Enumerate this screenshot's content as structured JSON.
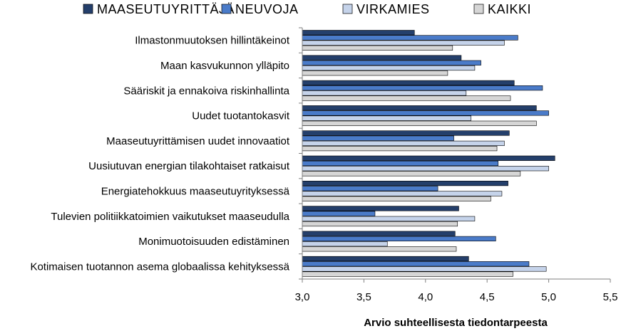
{
  "chart_data": {
    "type": "bar",
    "orientation": "horizontal",
    "categories": [
      "Ilmastonmuutoksen hillintäkeinot",
      "Maan kasvukunnon ylläpito",
      "Sääriskit ja ennakoiva riskinhallinta",
      "Uudet tuotantokasvit",
      "Maaseutuyrittämisen uudet innovaatiot",
      "Uusiutuvan energian tilakohtaiset ratkaisut",
      "Energiatehokkuus maaseutuyrityksessä",
      "Tulevien politiikkatoimien vaikutukset maaseudulla",
      "Monimuotoisuuden edistäminen",
      "Kotimaisen tuotannon asema globaalissa kehityksessä"
    ],
    "series": [
      {
        "name": "MAASEUTUYRITTÄJÄ",
        "color": "#243F6B",
        "values": [
          3.91,
          4.29,
          4.72,
          4.9,
          4.68,
          5.05,
          4.67,
          4.27,
          4.24,
          4.35
        ]
      },
      {
        "name": "NEUVOJA",
        "color": "#4A7BC9",
        "values": [
          4.75,
          4.45,
          4.95,
          5.0,
          4.23,
          4.59,
          4.1,
          3.59,
          4.57,
          4.84
        ]
      },
      {
        "name": "VIRKAMIES",
        "color": "#C5D3EA",
        "values": [
          4.64,
          4.4,
          4.33,
          4.37,
          4.64,
          5.0,
          4.62,
          4.4,
          3.69,
          4.98
        ]
      },
      {
        "name": "KAIKKI",
        "color": "#D6D6D6",
        "values": [
          4.22,
          4.18,
          4.69,
          4.9,
          4.58,
          4.77,
          4.53,
          4.26,
          4.25,
          4.71
        ]
      }
    ],
    "xlabel": "Arvio suhteellisesta tiedontarpeesta",
    "ylabel": "",
    "xlim": [
      3.0,
      5.5
    ],
    "xticks": [
      "3,0",
      "3,5",
      "4,0",
      "4,5",
      "5,0",
      "5,5"
    ],
    "grid": false,
    "legend_position": "top"
  }
}
